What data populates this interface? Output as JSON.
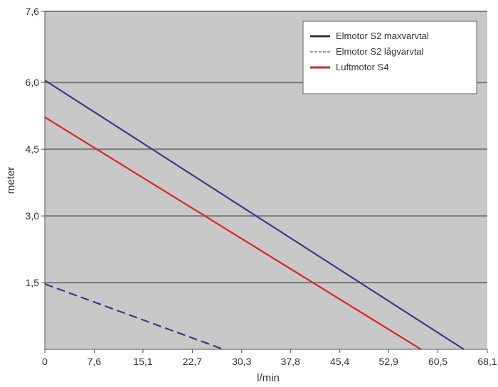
{
  "chart_data": {
    "type": "line",
    "title": "",
    "xlabel": "l/min",
    "ylabel": "meter",
    "xlim": [
      0,
      68.1
    ],
    "ylim": [
      0,
      7.6
    ],
    "x_ticks": [
      "0",
      "7,6",
      "15,1",
      "22,7",
      "30,3",
      "37,8",
      "45,4",
      "52,9",
      "60,5",
      "68,1"
    ],
    "x_tick_values": [
      0,
      7.6,
      15.1,
      22.7,
      30.3,
      37.8,
      45.4,
      52.9,
      60.5,
      68.1
    ],
    "y_ticks": [
      "1,5",
      "3,0",
      "4,5",
      "6,0",
      "7,6"
    ],
    "y_tick_values": [
      1.5,
      3.0,
      4.5,
      6.0,
      7.6
    ],
    "grid": "horizontal",
    "legend_position": "top-right",
    "background_color": "#c8c8c8",
    "grid_color": "#7a7a7a",
    "series": [
      {
        "name": "Elmotor S2 maxvarvtal",
        "x": [
          0,
          64.5
        ],
        "y": [
          6.05,
          0
        ],
        "color": "#3a3a8c",
        "style": "solid",
        "legend_color": "#333333"
      },
      {
        "name": "Elmotor S2 lågvarvtal",
        "x": [
          0,
          27.5
        ],
        "y": [
          1.47,
          0
        ],
        "color": "#3a3a8c",
        "style": "dashed",
        "legend_color": "#999999"
      },
      {
        "name": "Luftmotor S4",
        "x": [
          0,
          57.9
        ],
        "y": [
          5.22,
          0
        ],
        "color": "#dd2222",
        "style": "solid",
        "legend_color": "#dd2222"
      }
    ]
  }
}
